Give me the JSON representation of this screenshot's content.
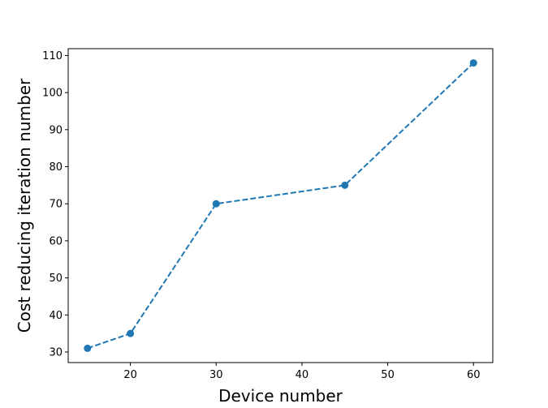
{
  "chart_data": {
    "type": "line",
    "title": "",
    "xlabel": "Device number",
    "ylabel": "Cost reducing iteration number",
    "x": [
      15,
      20,
      30,
      45,
      60
    ],
    "series": [
      {
        "values": [
          31,
          35,
          70,
          75,
          108
        ],
        "color": "#1f77b4",
        "line_style": "dashed",
        "marker": "circle"
      }
    ],
    "xlim": [
      12.75,
      62.25
    ],
    "ylim": [
      27.15,
      111.85
    ],
    "xticks": [
      20,
      30,
      40,
      50,
      60
    ],
    "yticks": [
      30,
      40,
      50,
      60,
      70,
      80,
      90,
      100,
      110
    ],
    "grid": false,
    "legend": "none"
  }
}
